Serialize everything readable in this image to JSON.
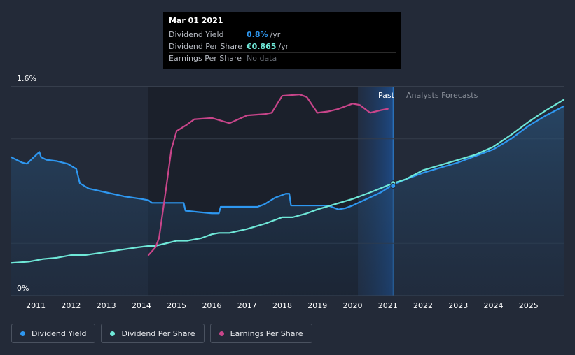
{
  "tooltip": {
    "date": "Mar 01 2021",
    "rows": [
      {
        "label": "Dividend Yield",
        "value": "0.8%",
        "unit": "/yr",
        "color": "#2e97f0"
      },
      {
        "label": "Dividend Per Share",
        "value": "€0.865",
        "unit": "/yr",
        "color": "#6fe8d8"
      },
      {
        "label": "Earnings Per Share",
        "value": "No data",
        "unit": "",
        "color": "#666b73"
      }
    ]
  },
  "chart_data": {
    "type": "line",
    "title": "",
    "y_ticks": [
      "1.6%",
      "0%"
    ],
    "ylim": [
      0,
      1.6
    ],
    "xlim": [
      2010.3,
      2026.0
    ],
    "x_tick_labels": [
      "2011",
      "2012",
      "2013",
      "2014",
      "2015",
      "2016",
      "2017",
      "2018",
      "2019",
      "2020",
      "2021",
      "2022",
      "2023",
      "2024",
      "2025"
    ],
    "past_label": "Past",
    "forecast_label": "Analysts Forecasts",
    "forecast_start": 2021.15,
    "series": [
      {
        "name": "Dividend Yield",
        "color": "#2e97f0",
        "x": [
          2010.3,
          2010.6,
          2010.75,
          2010.9,
          2011.1,
          2011.15,
          2011.3,
          2011.6,
          2011.9,
          2012.15,
          2012.25,
          2012.5,
          2013.0,
          2013.5,
          2014.0,
          2014.2,
          2014.3,
          2014.6,
          2015.0,
          2015.2,
          2015.25,
          2015.6,
          2016.0,
          2016.2,
          2016.25,
          2016.6,
          2017.0,
          2017.3,
          2017.5,
          2017.8,
          2018.1,
          2018.2,
          2018.25,
          2018.6,
          2019.0,
          2019.3,
          2019.6,
          2019.8,
          2020.0,
          2020.4,
          2020.8,
          2021.15,
          2021.5,
          2022.0,
          2022.5,
          2023.0,
          2023.5,
          2024.0,
          2024.5,
          2025.0,
          2025.5,
          2026.0
        ],
        "y": [
          1.06,
          1.02,
          1.01,
          1.05,
          1.1,
          1.06,
          1.04,
          1.03,
          1.01,
          0.97,
          0.86,
          0.82,
          0.79,
          0.76,
          0.74,
          0.73,
          0.71,
          0.71,
          0.71,
          0.71,
          0.65,
          0.64,
          0.63,
          0.63,
          0.68,
          0.68,
          0.68,
          0.68,
          0.7,
          0.75,
          0.78,
          0.78,
          0.69,
          0.69,
          0.69,
          0.69,
          0.66,
          0.67,
          0.69,
          0.74,
          0.79,
          0.85,
          0.89,
          0.94,
          0.98,
          1.02,
          1.07,
          1.12,
          1.2,
          1.3,
          1.38,
          1.45
        ]
      },
      {
        "name": "Dividend Per Share",
        "color": "#6fe8d8",
        "x": [
          2010.3,
          2010.8,
          2011.2,
          2011.6,
          2012.0,
          2012.4,
          2012.9,
          2013.4,
          2013.9,
          2014.2,
          2014.4,
          2014.7,
          2015.0,
          2015.3,
          2015.7,
          2016.0,
          2016.2,
          2016.5,
          2017.0,
          2017.5,
          2018.0,
          2018.3,
          2018.7,
          2019.0,
          2019.5,
          2020.0,
          2020.5,
          2021.15,
          2021.5,
          2022.0,
          2022.5,
          2023.0,
          2023.5,
          2024.0,
          2024.5,
          2025.0,
          2025.5,
          2026.0
        ],
        "y": [
          0.25,
          0.26,
          0.28,
          0.29,
          0.31,
          0.31,
          0.33,
          0.35,
          0.37,
          0.38,
          0.38,
          0.4,
          0.42,
          0.42,
          0.44,
          0.47,
          0.48,
          0.48,
          0.51,
          0.55,
          0.6,
          0.6,
          0.63,
          0.66,
          0.7,
          0.74,
          0.79,
          0.86,
          0.89,
          0.96,
          1.0,
          1.04,
          1.08,
          1.14,
          1.23,
          1.33,
          1.42,
          1.5
        ]
      },
      {
        "name": "Earnings Per Share",
        "color": "#c8458a",
        "x": [
          2014.2,
          2014.4,
          2014.5,
          2014.7,
          2014.85,
          2015.0,
          2015.3,
          2015.5,
          2016.0,
          2016.5,
          2017.0,
          2017.5,
          2017.7,
          2018.0,
          2018.5,
          2018.7,
          2019.0,
          2019.3,
          2019.6,
          2020.0,
          2020.2,
          2020.5,
          2020.8,
          2021.0
        ],
        "y": [
          0.31,
          0.37,
          0.44,
          0.82,
          1.12,
          1.26,
          1.31,
          1.35,
          1.36,
          1.32,
          1.38,
          1.39,
          1.4,
          1.53,
          1.54,
          1.52,
          1.4,
          1.41,
          1.43,
          1.47,
          1.46,
          1.4,
          1.42,
          1.43
        ]
      }
    ]
  },
  "legend": {
    "items": [
      {
        "label": "Dividend Yield",
        "color": "#2e97f0"
      },
      {
        "label": "Dividend Per Share",
        "color": "#6fe8d8"
      },
      {
        "label": "Earnings Per Share",
        "color": "#c8458a"
      }
    ]
  }
}
